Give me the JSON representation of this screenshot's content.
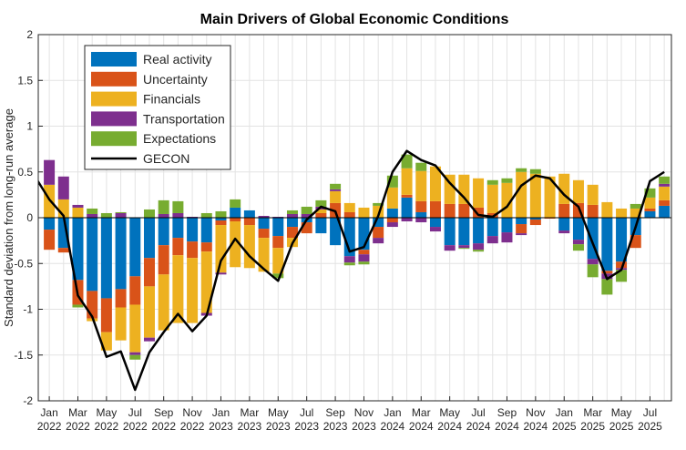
{
  "chart_data": {
    "type": "bar",
    "subtype": "stacked bar with line overlay",
    "title": "Main Drivers of Global Economic Conditions",
    "xlabel": "",
    "ylabel": "Standard deviation from long-run average",
    "ylim": [
      -2,
      2
    ],
    "yticks": [
      2,
      1.5,
      1,
      0.5,
      0,
      -0.5,
      -1,
      -1.5,
      -2
    ],
    "ytick_labels": [
      "2",
      "1.5",
      "1",
      "0.5",
      "0",
      "-0.5",
      "-1",
      "-1.5",
      "-2"
    ],
    "grid": true,
    "legend_position": "top-left",
    "xticks": [
      {
        "month": "Jan",
        "year": "2022",
        "index": 0
      },
      {
        "month": "Mar",
        "year": "2022",
        "index": 2
      },
      {
        "month": "May",
        "year": "2022",
        "index": 4
      },
      {
        "month": "Jul",
        "year": "2022",
        "index": 6
      },
      {
        "month": "Sep",
        "year": "2022",
        "index": 8
      },
      {
        "month": "Nov",
        "year": "2022",
        "index": 10
      },
      {
        "month": "Jan",
        "year": "2023",
        "index": 12
      },
      {
        "month": "Mar",
        "year": "2023",
        "index": 14
      },
      {
        "month": "May",
        "year": "2023",
        "index": 16
      },
      {
        "month": "Jul",
        "year": "2023",
        "index": 18
      },
      {
        "month": "Sep",
        "year": "2023",
        "index": 20
      },
      {
        "month": "Nov",
        "year": "2023",
        "index": 22
      },
      {
        "month": "Jan",
        "year": "2024",
        "index": 24
      },
      {
        "month": "Mar",
        "year": "2024",
        "index": 26
      },
      {
        "month": "May",
        "year": "2024",
        "index": 28
      },
      {
        "month": "Jul",
        "year": "2024",
        "index": 30
      },
      {
        "month": "Sep",
        "year": "2024",
        "index": 32
      },
      {
        "month": "Nov",
        "year": "2024",
        "index": 34
      },
      {
        "month": "Jan",
        "year": "2025",
        "index": 36
      },
      {
        "month": "Mar",
        "year": "2025",
        "index": 38
      },
      {
        "month": "May",
        "year": "2025",
        "index": 40
      },
      {
        "month": "Jul",
        "year": "2025",
        "index": 42
      }
    ],
    "series": [
      {
        "name": "Real activity",
        "color": "#0072BD",
        "values": [
          -0.13,
          -0.33,
          -0.68,
          -0.8,
          -0.88,
          -0.78,
          -0.64,
          -0.44,
          -0.3,
          -0.22,
          -0.26,
          -0.27,
          -0.03,
          0.11,
          0.08,
          -0.12,
          -0.2,
          -0.1,
          -0.05,
          -0.17,
          -0.3,
          -0.42,
          -0.35,
          -0.1,
          0.1,
          0.22,
          0.06,
          -0.1,
          -0.3,
          -0.3,
          -0.28,
          -0.2,
          -0.16,
          -0.07,
          -0.02,
          0,
          -0.14,
          -0.24,
          -0.45,
          -0.58,
          -0.48,
          -0.19,
          0.07,
          0.13
        ]
      },
      {
        "name": "Uncertainty",
        "color": "#D95319",
        "values": [
          -0.22,
          -0.05,
          -0.27,
          -0.3,
          -0.37,
          -0.2,
          -0.31,
          -0.31,
          -0.32,
          -0.19,
          -0.18,
          -0.1,
          -0.05,
          -0.04,
          -0.08,
          -0.1,
          -0.13,
          -0.12,
          -0.12,
          0.05,
          0.16,
          0.06,
          -0.05,
          -0.12,
          -0.05,
          0.03,
          0.12,
          0.18,
          0.15,
          0.15,
          0.11,
          0.05,
          0,
          -0.1,
          -0.06,
          -0.01,
          0.15,
          0.16,
          0.14,
          -0.03,
          -0.07,
          -0.14,
          0.03,
          0.06
        ]
      },
      {
        "name": "Financials",
        "color": "#EDB120",
        "values": [
          0.36,
          0.2,
          0.11,
          -0.03,
          -0.2,
          -0.36,
          -0.52,
          -0.56,
          -0.61,
          -0.74,
          -0.71,
          -0.67,
          -0.52,
          -0.5,
          -0.47,
          -0.37,
          -0.28,
          -0.1,
          0,
          0.04,
          0.13,
          0.1,
          0.11,
          0.13,
          0.23,
          0.29,
          0.33,
          0.38,
          0.32,
          0.32,
          0.32,
          0.31,
          0.38,
          0.5,
          0.48,
          0.45,
          0.33,
          0.25,
          0.22,
          0.17,
          0.1,
          0.1,
          0.12,
          0.15
        ]
      },
      {
        "name": "Transportation",
        "color": "#7E2F8E",
        "values": [
          0.27,
          0.25,
          0.03,
          0.04,
          0,
          0.05,
          -0.03,
          -0.04,
          0.04,
          0.05,
          0.01,
          -0.03,
          -0.02,
          0,
          0,
          0.02,
          0.01,
          0.04,
          0.04,
          0.03,
          0.02,
          -0.07,
          -0.08,
          -0.06,
          -0.05,
          -0.04,
          -0.05,
          -0.05,
          -0.06,
          -0.03,
          -0.07,
          -0.08,
          -0.11,
          -0.02,
          0,
          0,
          -0.03,
          -0.05,
          -0.06,
          -0.06,
          -0.02,
          0,
          0,
          0.03
        ]
      },
      {
        "name": "Expectations",
        "color": "#77AC30",
        "values": [
          0,
          0,
          -0.03,
          0.06,
          0.05,
          0.01,
          -0.05,
          0.09,
          0.15,
          0.13,
          0,
          0.05,
          0.07,
          0.09,
          0,
          0,
          -0.05,
          0.04,
          0.08,
          0.07,
          0.06,
          -0.03,
          -0.03,
          0.03,
          0.13,
          0.15,
          0.09,
          0,
          0,
          -0.01,
          -0.02,
          0.05,
          0.05,
          0.04,
          0.05,
          0,
          0,
          -0.07,
          -0.14,
          -0.17,
          -0.13,
          0.05,
          0.1,
          0.08
        ]
      }
    ],
    "line": {
      "name": "GECON",
      "color": "#000000",
      "value_before_first_month": 0.45,
      "values": [
        0.2,
        0.02,
        -0.85,
        -1.08,
        -1.52,
        -1.46,
        -1.88,
        -1.47,
        -1.25,
        -1.05,
        -1.24,
        -1.07,
        -0.47,
        -0.23,
        -0.42,
        -0.56,
        -0.69,
        -0.28,
        -0.02,
        0.12,
        0.07,
        -0.37,
        -0.32,
        0.02,
        0.5,
        0.73,
        0.63,
        0.57,
        0.38,
        0.22,
        0.03,
        0.01,
        0.12,
        0.35,
        0.46,
        0.43,
        0.25,
        0.12,
        -0.28,
        -0.67,
        -0.57,
        -0.1,
        0.4,
        0.5
      ]
    },
    "legend": [
      "Real activity",
      "Uncertainty",
      "Financials",
      "Transportation",
      "Expectations",
      "GECON"
    ]
  }
}
